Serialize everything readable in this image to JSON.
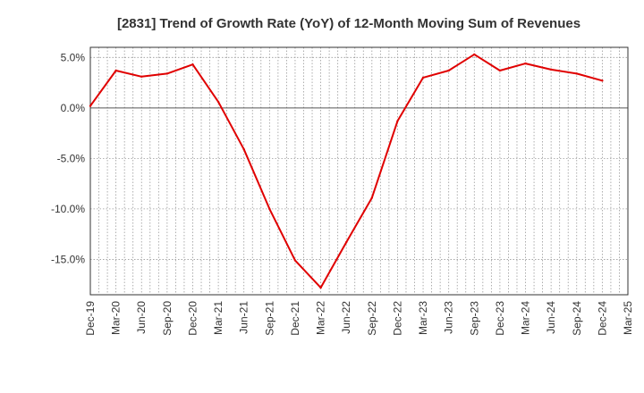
{
  "chart_data": {
    "type": "line",
    "title": "[2831]  Trend of Growth Rate (YoY) of 12-Month Moving Sum of Revenues",
    "xlabel": "",
    "ylabel": "",
    "x_tick_labels": [
      "Dec-19",
      "Mar-20",
      "Jun-20",
      "Sep-20",
      "Dec-20",
      "Mar-21",
      "Jun-21",
      "Sep-21",
      "Dec-21",
      "Mar-22",
      "Jun-22",
      "Sep-22",
      "Dec-22",
      "Mar-23",
      "Jun-23",
      "Sep-23",
      "Dec-23",
      "Mar-24",
      "Jun-24",
      "Sep-24",
      "Dec-24",
      "Mar-25"
    ],
    "y_ticks": [
      5.0,
      0.0,
      -5.0,
      -10.0,
      -15.0
    ],
    "y_tick_labels": [
      "5.0%",
      "0.0%",
      "-5.0%",
      "-10.0%",
      "-15.0%"
    ],
    "ylim": [
      -18.5,
      6.0
    ],
    "grid": true,
    "series": [
      {
        "name": "",
        "color": "#e00000",
        "x": [
          "Dec-19",
          "Mar-20",
          "Jun-20",
          "Sep-20",
          "Dec-20",
          "Mar-21",
          "Jun-21",
          "Sep-21",
          "Dec-21",
          "Mar-22",
          "Jun-22",
          "Sep-22",
          "Dec-22",
          "Mar-23",
          "Jun-23",
          "Sep-23",
          "Dec-23",
          "Mar-24",
          "Jun-24",
          "Sep-24",
          "Dec-24"
        ],
        "values": [
          0.2,
          3.7,
          3.1,
          3.4,
          4.3,
          0.6,
          -4.1,
          -10.0,
          -15.1,
          -17.8,
          -13.3,
          -8.9,
          -1.3,
          3.0,
          3.7,
          5.3,
          3.7,
          4.4,
          3.8,
          3.4,
          2.7
        ]
      }
    ]
  }
}
